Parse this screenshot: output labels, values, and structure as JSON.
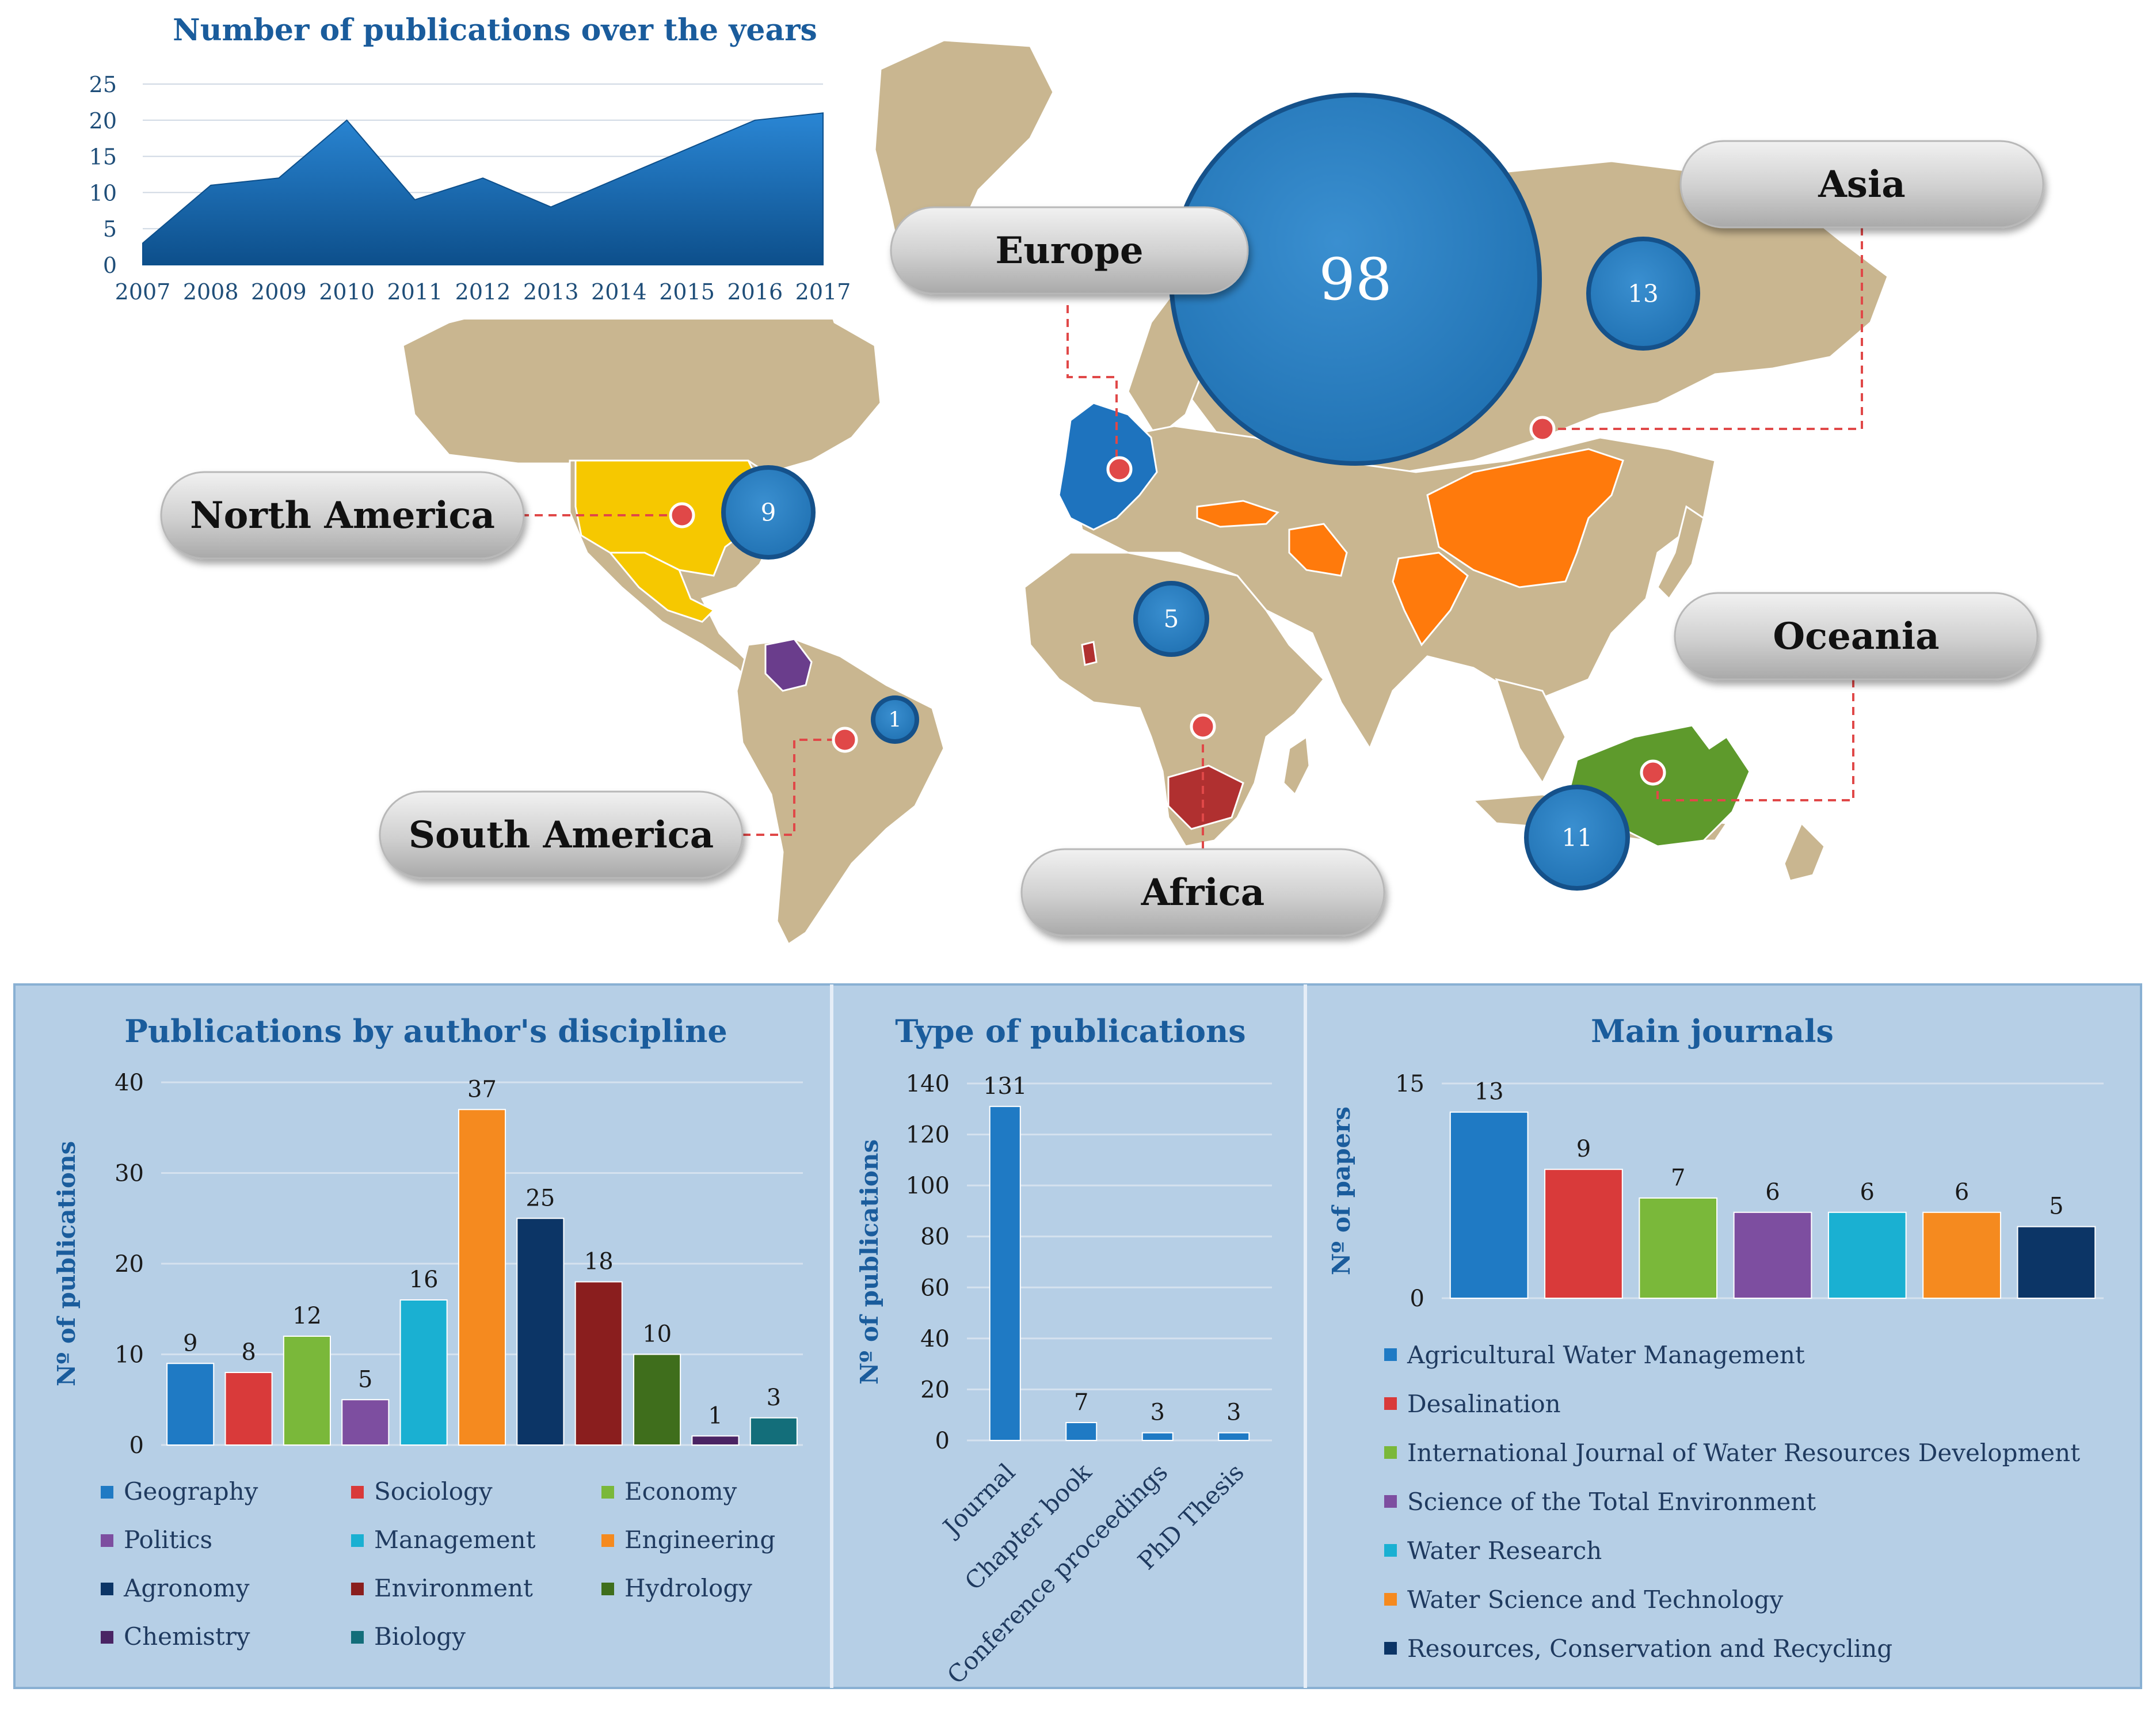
{
  "colors": {
    "land": "#c9b690",
    "land_stroke": "#ffffff",
    "bubble": "#2a7ec0",
    "bubble_edge": "#15518a",
    "pin": "#e04848",
    "callout": "#c4c4c4",
    "callout_line": "#e04848",
    "panel_bg": "#b6cfe6",
    "panel_border": "#89b0d3",
    "title_blue": "#1a5c9c",
    "axis_text": "#1f4e79",
    "area_top": "#2a86d4",
    "area_bottom": "#0d4f8b",
    "na_fill": "#f6c800",
    "asia_fill": "#ff7a0c",
    "europe_fill": "#1e73be",
    "oceania_fill": "#5e9a2c",
    "africa_fill": "#b03030",
    "colombia_fill": "#6a3d8c",
    "brazil_fill": "#c9b690"
  },
  "map": {
    "regions": [
      {
        "name": "Europe",
        "count": "98"
      },
      {
        "name": "Asia",
        "count": "13"
      },
      {
        "name": "North America",
        "count": "9"
      },
      {
        "name": "South America",
        "count": "1"
      },
      {
        "name": "Africa",
        "count": "5"
      },
      {
        "name": "Oceania",
        "count": "11"
      }
    ]
  },
  "chart_data": [
    {
      "type": "area",
      "title": "Number of publications over the years",
      "x": [
        "2007",
        "2008",
        "2009",
        "2010",
        "2011",
        "2012",
        "2013",
        "2014",
        "2015",
        "2016",
        "2017"
      ],
      "values": [
        3,
        11,
        12,
        20,
        9,
        12,
        8,
        12,
        16,
        20,
        21
      ],
      "ylim": [
        0,
        25
      ],
      "yticks": [
        "0",
        "5",
        "10",
        "15",
        "20",
        "25"
      ],
      "grid": true
    },
    {
      "type": "bar",
      "title": "Publications by author's discipline",
      "ylabel": "Nº of publications",
      "ylim": [
        0,
        40
      ],
      "yticks": [
        "0",
        "10",
        "20",
        "30",
        "40"
      ],
      "categories": [
        "Geography",
        "Sociology",
        "Economy",
        "Politics",
        "Management",
        "Engineering",
        "Agronomy",
        "Environment",
        "Hydrology",
        "Chemistry",
        "Biology"
      ],
      "values": [
        9,
        8,
        12,
        5,
        16,
        37,
        25,
        18,
        10,
        1,
        3
      ],
      "colors": [
        "#1f7ac4",
        "#d93a3a",
        "#7ab83a",
        "#7d4ea0",
        "#1ab0d2",
        "#f58a1f",
        "#0c3566",
        "#8a1e1e",
        "#3f6e1c",
        "#4a2464",
        "#136e7a"
      ],
      "legend": "bottom",
      "grid": true
    },
    {
      "type": "bar",
      "title": "Type of publications",
      "ylabel": "Nº of publications",
      "ylim": [
        0,
        140
      ],
      "yticks": [
        "0",
        "20",
        "40",
        "60",
        "80",
        "100",
        "120",
        "140"
      ],
      "categories": [
        "Journal",
        "Chapter book",
        "Conference proceedings",
        "PhD Thesis"
      ],
      "values": [
        131,
        7,
        3,
        3
      ],
      "grid": true
    },
    {
      "type": "bar",
      "title": "Main journals",
      "ylabel": "Nº of papers",
      "ylim": [
        0,
        15
      ],
      "yticks": [
        "0",
        "15"
      ],
      "categories": [
        "Agricultural Water Management",
        "Desalination",
        "International Journal of Water Resources Development",
        "Science of the Total Environment",
        "Water Research",
        "Water Science and Technology",
        "Resources, Conservation and Recycling"
      ],
      "values": [
        13,
        9,
        7,
        6,
        6,
        6,
        5
      ],
      "colors": [
        "#1f7ac4",
        "#d93a3a",
        "#7ab83a",
        "#7d4ea0",
        "#1ab0d2",
        "#f58a1f",
        "#0c3566"
      ],
      "legend": "bottom",
      "grid": true
    }
  ]
}
